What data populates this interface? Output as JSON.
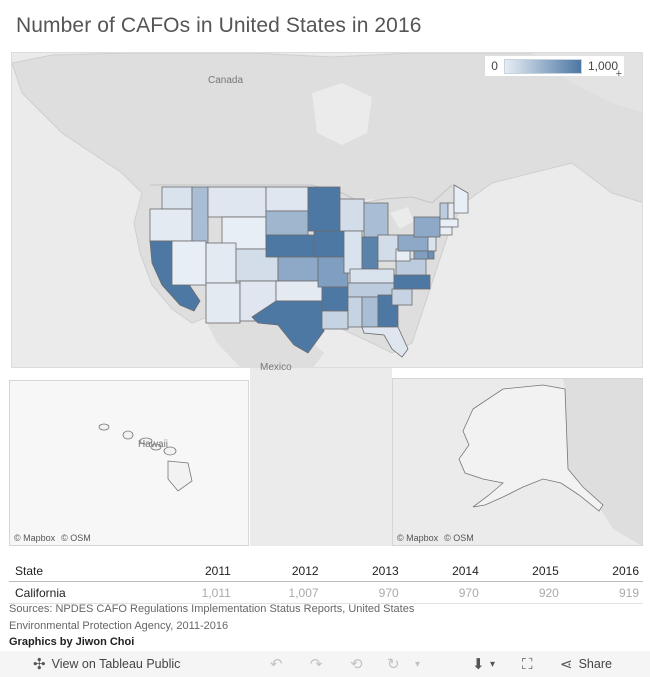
{
  "title": "Number of CAFOs in United States in 2016",
  "legend": {
    "min_label": "0",
    "max_label": "1,000",
    "color_low": "#e6edf4",
    "color_high": "#4d77a3",
    "expand_icon": "plus-icon"
  },
  "map_labels": {
    "canada": "Canada",
    "mexico": "Mexico",
    "hawaii": "Hawaii"
  },
  "attribution": {
    "mapbox": "© Mapbox",
    "osm": "© OSM"
  },
  "table": {
    "header": [
      "State",
      "2011",
      "2012",
      "2013",
      "2014",
      "2015",
      "2016"
    ],
    "rows": [
      [
        "California",
        "1,011",
        "1,007",
        "970",
        "970",
        "920",
        "919"
      ]
    ]
  },
  "sources": "Sources: NPDES CAFO Regulations Implementation Status Reports, United States Environmental Protection Agency, 2011-2016",
  "credit": "Graphics by Jiwon Choi",
  "toolbar": {
    "view_label": "View on Tableau Public",
    "share_label": "Share",
    "icons": [
      "tableau-logo-icon",
      "undo-icon",
      "redo-icon",
      "revert-icon",
      "refresh-icon",
      "download-icon",
      "fullscreen-icon",
      "share-icon"
    ]
  }
}
